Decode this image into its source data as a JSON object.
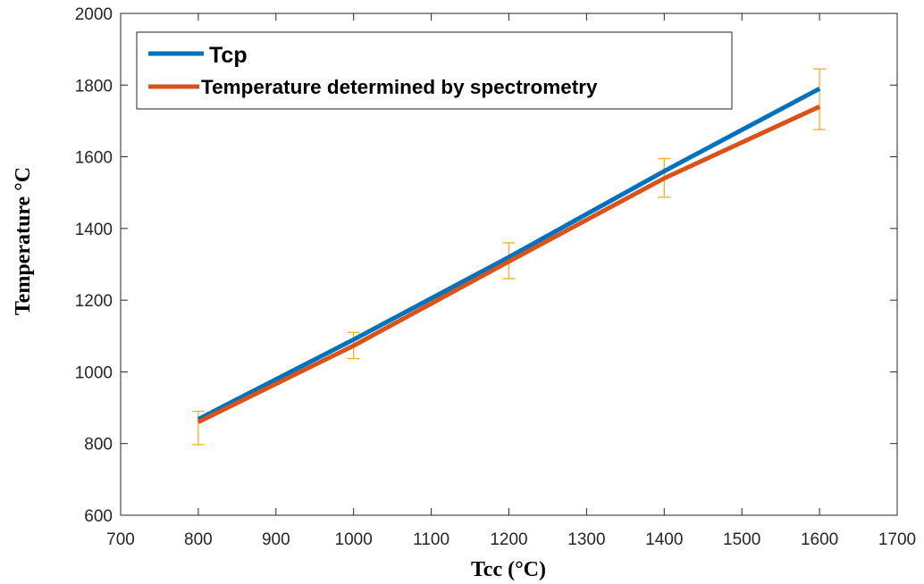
{
  "chart_data": {
    "type": "line",
    "title": "",
    "xlabel": "Tcc (°C)",
    "ylabel": "Temperature °C",
    "xlim": [
      700,
      1700
    ],
    "ylim": [
      600,
      2000
    ],
    "xticks": [
      700,
      800,
      900,
      1000,
      1100,
      1200,
      1300,
      1400,
      1500,
      1600,
      1700
    ],
    "yticks": [
      600,
      800,
      1000,
      1200,
      1400,
      1600,
      1800,
      2000
    ],
    "grid": false,
    "legend_position": "top-left",
    "series": [
      {
        "name": "Tcp",
        "color": "#0072BD",
        "x": [
          800,
          1000,
          1200,
          1400,
          1600
        ],
        "y": [
          868,
          1090,
          1320,
          1560,
          1790
        ]
      },
      {
        "name": "Temperature determined by spectrometry",
        "color": "#D95319",
        "x": [
          800,
          1000,
          1200,
          1400,
          1600
        ],
        "y": [
          860,
          1073,
          1308,
          1540,
          1740
        ],
        "error_color": "#EDB120",
        "error_low": [
          797,
          1037,
          1260,
          1487,
          1676
        ],
        "error_high": [
          890,
          1110,
          1360,
          1595,
          1845
        ]
      }
    ]
  }
}
